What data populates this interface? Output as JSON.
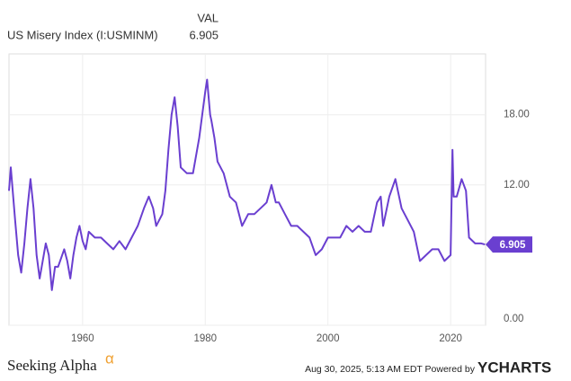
{
  "chart_data": {
    "type": "line",
    "title": "US Misery Index (I:USMINM)",
    "value_header": "VAL",
    "x": [
      1948,
      1948.3,
      1949,
      1949.5,
      1950,
      1950.5,
      1951,
      1951.5,
      1952,
      1952.5,
      1953,
      1953.5,
      1954,
      1954.5,
      1955,
      1955.5,
      1956,
      1957,
      1957.5,
      1958,
      1958.5,
      1959,
      1959.5,
      1960,
      1960.5,
      1961,
      1962,
      1963,
      1964,
      1965,
      1966,
      1967,
      1968,
      1969,
      1970,
      1970.8,
      1971.5,
      1972,
      1973,
      1973.5,
      1974,
      1974.5,
      1975,
      1975.5,
      1976,
      1977,
      1978,
      1979,
      1980,
      1980.3,
      1980.8,
      1981,
      1981.5,
      1982,
      1983,
      1984,
      1985,
      1986,
      1987,
      1988,
      1989,
      1990,
      1990.8,
      1991.5,
      1992,
      1993,
      1994,
      1995,
      1996,
      1997,
      1998,
      1999,
      2000,
      2001,
      2002,
      2003,
      2004,
      2005,
      2006,
      2007,
      2008,
      2008.6,
      2009,
      2010,
      2011,
      2012,
      2013,
      2014,
      2015,
      2016,
      2017,
      2018,
      2019,
      2020,
      2020.3,
      2020.5,
      2021,
      2021.8,
      2022.5,
      2023,
      2024,
      2025,
      2025.6
    ],
    "series": [
      {
        "name": "US Misery Index (I:USMINM)",
        "color": "#6a3fd0",
        "values": [
          11.5,
          13.5,
          9,
          6,
          4.5,
          7,
          10,
          12.5,
          10,
          6,
          4,
          5.5,
          7,
          6,
          3,
          5,
          5,
          6.5,
          5.5,
          4,
          6,
          7.5,
          8.5,
          7.2,
          6.5,
          8,
          7.5,
          7.5,
          7,
          6.5,
          7.2,
          6.5,
          7.5,
          8.5,
          10,
          11,
          10,
          8.5,
          9.5,
          11.5,
          15,
          18,
          19.5,
          17,
          13.5,
          13,
          13,
          16,
          20,
          21,
          18,
          17.5,
          16,
          14,
          13,
          11,
          10.5,
          8.5,
          9.5,
          9.5,
          10,
          10.5,
          12,
          10.5,
          10.5,
          9.5,
          8.5,
          8.5,
          8,
          7.5,
          6,
          6.5,
          7.5,
          7.5,
          7.5,
          8.5,
          8,
          8.5,
          8,
          8,
          10.5,
          11,
          8.5,
          11,
          12.5,
          10,
          9,
          8,
          5.5,
          6,
          6.5,
          6.5,
          5.5,
          6,
          15,
          11,
          11,
          12.5,
          11.5,
          7.5,
          7,
          7,
          6.905
        ]
      }
    ],
    "xlim": [
      1948,
      2025.7
    ],
    "ylim": [
      0,
      23.2
    ],
    "xticks": [
      1960,
      1980,
      2000,
      2020
    ],
    "yticks": [
      {
        "value": 0,
        "label": "0.00"
      },
      {
        "value": 12,
        "label": "12.00"
      },
      {
        "value": 18,
        "label": "18.00"
      }
    ],
    "grid": true
  },
  "footer": {
    "brand": "Seeking Alpha",
    "brand_mark": "α",
    "timestamp": "Aug 30, 2025, 5:13 AM EDT Powered by",
    "provider": "YCHARTS"
  }
}
